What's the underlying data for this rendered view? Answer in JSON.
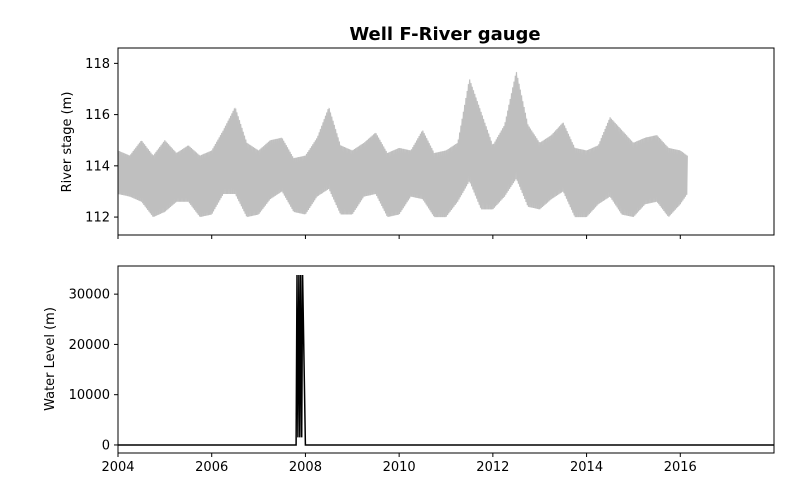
{
  "chart_data": [
    {
      "type": "line",
      "title": "Well F-River gauge",
      "xlabel": "",
      "ylabel": "River stage (m)",
      "xlim": [
        2004.0,
        2018.0
      ],
      "ylim": [
        111.3,
        118.6
      ],
      "yticks": [
        112,
        114,
        116,
        118
      ],
      "xticks": [
        2004,
        2006,
        2008,
        2010,
        2012,
        2014,
        2016
      ],
      "x_tick_labels_shown": false,
      "grid": false,
      "color": "#bfbfbf",
      "series": [
        {
          "x": [
            2004.0,
            2004.25,
            2004.5,
            2004.75,
            2005.0,
            2005.25,
            2005.5,
            2005.75,
            2006.0,
            2006.25,
            2006.5,
            2006.75,
            2007.0,
            2007.25,
            2007.5,
            2007.75,
            2008.0,
            2008.25,
            2008.5,
            2008.75,
            2009.0,
            2009.25,
            2009.5,
            2009.75,
            2010.0,
            2010.25,
            2010.5,
            2010.75,
            2011.0,
            2011.25,
            2011.5,
            2011.75,
            2012.0,
            2012.25,
            2012.5,
            2012.75,
            2013.0,
            2013.25,
            2013.5,
            2013.75,
            2014.0,
            2014.25,
            2014.5,
            2014.75,
            2015.0,
            2015.25,
            2015.5,
            2015.75,
            2016.0,
            2016.15
          ],
          "y_high": [
            114.6,
            114.4,
            115.0,
            114.4,
            115.0,
            114.5,
            114.8,
            114.4,
            114.6,
            115.4,
            116.3,
            114.9,
            114.6,
            115.0,
            115.1,
            114.3,
            114.4,
            115.1,
            116.3,
            114.8,
            114.6,
            114.9,
            115.3,
            114.5,
            114.7,
            114.6,
            115.4,
            114.5,
            114.6,
            114.9,
            117.4,
            116.1,
            114.8,
            115.6,
            117.7,
            115.6,
            114.9,
            115.2,
            115.7,
            114.7,
            114.6,
            114.8,
            115.9,
            115.4,
            114.9,
            115.1,
            115.2,
            114.7,
            114.6,
            114.4
          ],
          "y_low": [
            112.9,
            112.8,
            112.6,
            112.0,
            112.2,
            112.6,
            112.6,
            112.0,
            112.1,
            112.9,
            112.9,
            112.0,
            112.1,
            112.7,
            113.0,
            112.2,
            112.1,
            112.8,
            113.1,
            112.1,
            112.1,
            112.8,
            112.9,
            112.0,
            112.1,
            112.8,
            112.7,
            112.0,
            112.0,
            112.6,
            113.4,
            112.3,
            112.3,
            112.8,
            113.5,
            112.4,
            112.3,
            112.7,
            113.0,
            112.0,
            112.0,
            112.5,
            112.8,
            112.1,
            112.0,
            112.5,
            112.6,
            112.0,
            112.5,
            112.9
          ]
        }
      ]
    },
    {
      "type": "line",
      "title": "",
      "xlabel": "",
      "ylabel": "Water Level (m)",
      "xlim": [
        2004.0,
        2018.0
      ],
      "ylim": [
        -1600,
        35600
      ],
      "yticks": [
        0,
        10000,
        20000,
        30000
      ],
      "xticks": [
        2004,
        2006,
        2008,
        2010,
        2012,
        2014,
        2016
      ],
      "grid": false,
      "color": "#000000",
      "series": [
        {
          "x": [
            2004.0,
            2007.8,
            2007.82,
            2007.84,
            2007.86,
            2007.88,
            2007.9,
            2007.92,
            2007.94,
            2008.0,
            2018.0
          ],
          "y": [
            0,
            0,
            33800,
            1500,
            33800,
            1500,
            33800,
            1500,
            33800,
            0,
            0
          ]
        }
      ]
    }
  ]
}
